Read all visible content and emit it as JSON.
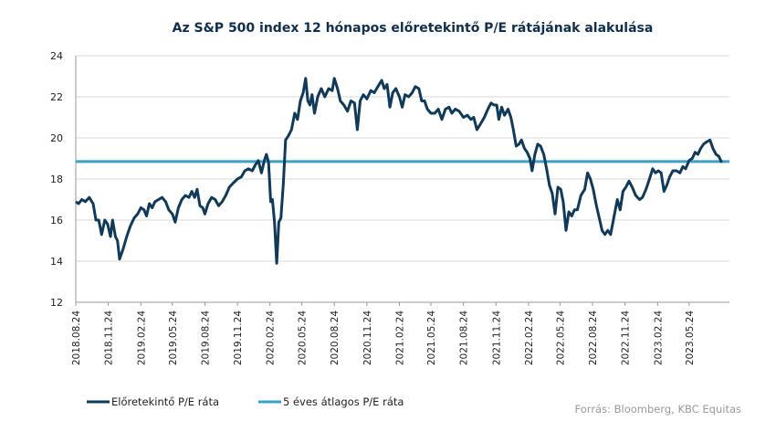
{
  "chart_data": {
    "type": "line",
    "title": "Az S&P 500 index 12 hónapos előretekintő P/E rátájának alakulása",
    "ylim": [
      12,
      24
    ],
    "yticks": [
      "12",
      "14",
      "16",
      "18",
      "20",
      "22",
      "24"
    ],
    "xlim": [
      "2018-08-24",
      "2023-09-15"
    ],
    "xticks": [
      {
        "date": "2018-08-24",
        "label": "2018.08.24"
      },
      {
        "date": "2018-11-24",
        "label": "2018.11.24"
      },
      {
        "date": "2019-02-24",
        "label": "2019.02.24"
      },
      {
        "date": "2019-05-24",
        "label": "2019.05.24"
      },
      {
        "date": "2019-08-24",
        "label": "2019.08.24"
      },
      {
        "date": "2019-11-24",
        "label": "2019.11.24"
      },
      {
        "date": "2020-02-24",
        "label": "2020.02.24"
      },
      {
        "date": "2020-05-24",
        "label": "2020.05.24"
      },
      {
        "date": "2020-08-24",
        "label": "2020.08.24"
      },
      {
        "date": "2020-11-24",
        "label": "2020.11.24"
      },
      {
        "date": "2021-02-24",
        "label": "2021.02.24"
      },
      {
        "date": "2021-05-24",
        "label": "2021.05.24"
      },
      {
        "date": "2021-08-24",
        "label": "2021.08.24"
      },
      {
        "date": "2021-11-24",
        "label": "2021.11.24"
      },
      {
        "date": "2022-02-24",
        "label": "2022.02.24"
      },
      {
        "date": "2022-05-24",
        "label": "2022.05.24"
      },
      {
        "date": "2022-08-24",
        "label": "2022.08.24"
      },
      {
        "date": "2022-11-24",
        "label": "2022.11.24"
      },
      {
        "date": "2023-02-24",
        "label": "2023.02.24"
      },
      {
        "date": "2023-05-24",
        "label": "2023.05.24"
      }
    ],
    "grid": true,
    "legend_position": "bottom-left",
    "series": [
      {
        "name": "Előretekintő P/E ráta",
        "color": "#0f3a5a",
        "points": [
          [
            "2018-08-24",
            16.9
          ],
          [
            "2018-09-01",
            16.8
          ],
          [
            "2018-09-10",
            17.0
          ],
          [
            "2018-09-20",
            16.9
          ],
          [
            "2018-10-01",
            17.1
          ],
          [
            "2018-10-12",
            16.8
          ],
          [
            "2018-10-20",
            16.0
          ],
          [
            "2018-10-28",
            16.0
          ],
          [
            "2018-11-05",
            15.3
          ],
          [
            "2018-11-14",
            16.0
          ],
          [
            "2018-11-22",
            15.8
          ],
          [
            "2018-11-30",
            15.2
          ],
          [
            "2018-12-06",
            16.0
          ],
          [
            "2018-12-14",
            15.2
          ],
          [
            "2018-12-20",
            15.0
          ],
          [
            "2018-12-26",
            14.1
          ],
          [
            "2019-01-05",
            14.6
          ],
          [
            "2019-01-15",
            15.2
          ],
          [
            "2019-01-25",
            15.7
          ],
          [
            "2019-02-05",
            16.1
          ],
          [
            "2019-02-15",
            16.3
          ],
          [
            "2019-02-24",
            16.6
          ],
          [
            "2019-03-05",
            16.5
          ],
          [
            "2019-03-12",
            16.2
          ],
          [
            "2019-03-20",
            16.8
          ],
          [
            "2019-03-28",
            16.6
          ],
          [
            "2019-04-05",
            16.9
          ],
          [
            "2019-04-15",
            17.0
          ],
          [
            "2019-04-25",
            17.1
          ],
          [
            "2019-05-05",
            16.9
          ],
          [
            "2019-05-14",
            16.5
          ],
          [
            "2019-05-24",
            16.3
          ],
          [
            "2019-06-01",
            15.9
          ],
          [
            "2019-06-10",
            16.6
          ],
          [
            "2019-06-20",
            17.0
          ],
          [
            "2019-06-30",
            17.2
          ],
          [
            "2019-07-10",
            17.1
          ],
          [
            "2019-07-18",
            17.4
          ],
          [
            "2019-07-26",
            17.1
          ],
          [
            "2019-08-02",
            17.5
          ],
          [
            "2019-08-10",
            16.7
          ],
          [
            "2019-08-18",
            16.6
          ],
          [
            "2019-08-24",
            16.3
          ],
          [
            "2019-09-02",
            16.8
          ],
          [
            "2019-09-12",
            17.1
          ],
          [
            "2019-09-22",
            17.0
          ],
          [
            "2019-10-02",
            16.7
          ],
          [
            "2019-10-12",
            16.9
          ],
          [
            "2019-10-22",
            17.2
          ],
          [
            "2019-11-01",
            17.6
          ],
          [
            "2019-11-12",
            17.8
          ],
          [
            "2019-11-24",
            18.0
          ],
          [
            "2019-12-05",
            18.1
          ],
          [
            "2019-12-15",
            18.4
          ],
          [
            "2019-12-25",
            18.5
          ],
          [
            "2020-01-05",
            18.4
          ],
          [
            "2020-01-14",
            18.7
          ],
          [
            "2020-01-22",
            18.9
          ],
          [
            "2020-01-31",
            18.3
          ],
          [
            "2020-02-08",
            18.9
          ],
          [
            "2020-02-14",
            19.2
          ],
          [
            "2020-02-20",
            18.8
          ],
          [
            "2020-02-26",
            16.9
          ],
          [
            "2020-03-02",
            17.0
          ],
          [
            "2020-03-08",
            15.9
          ],
          [
            "2020-03-14",
            13.9
          ],
          [
            "2020-03-20",
            15.9
          ],
          [
            "2020-03-26",
            16.1
          ],
          [
            "2020-04-02",
            17.8
          ],
          [
            "2020-04-08",
            19.9
          ],
          [
            "2020-04-16",
            20.1
          ],
          [
            "2020-04-25",
            20.4
          ],
          [
            "2020-05-04",
            21.2
          ],
          [
            "2020-05-12",
            20.9
          ],
          [
            "2020-05-20",
            21.8
          ],
          [
            "2020-05-28",
            22.2
          ],
          [
            "2020-06-04",
            22.9
          ],
          [
            "2020-06-10",
            21.8
          ],
          [
            "2020-06-16",
            21.6
          ],
          [
            "2020-06-22",
            22.1
          ],
          [
            "2020-06-29",
            21.2
          ],
          [
            "2020-07-08",
            22.0
          ],
          [
            "2020-07-18",
            22.4
          ],
          [
            "2020-07-28",
            22.0
          ],
          [
            "2020-08-08",
            22.4
          ],
          [
            "2020-08-18",
            22.3
          ],
          [
            "2020-08-24",
            22.9
          ],
          [
            "2020-09-02",
            22.4
          ],
          [
            "2020-09-10",
            21.8
          ],
          [
            "2020-09-20",
            21.6
          ],
          [
            "2020-09-30",
            21.3
          ],
          [
            "2020-10-10",
            21.8
          ],
          [
            "2020-10-20",
            21.7
          ],
          [
            "2020-10-28",
            20.4
          ],
          [
            "2020-11-05",
            21.8
          ],
          [
            "2020-11-14",
            22.1
          ],
          [
            "2020-11-24",
            21.9
          ],
          [
            "2020-12-05",
            22.3
          ],
          [
            "2020-12-15",
            22.2
          ],
          [
            "2020-12-25",
            22.5
          ],
          [
            "2021-01-05",
            22.8
          ],
          [
            "2021-01-12",
            22.4
          ],
          [
            "2021-01-20",
            22.6
          ],
          [
            "2021-01-28",
            21.5
          ],
          [
            "2021-02-05",
            22.2
          ],
          [
            "2021-02-14",
            22.4
          ],
          [
            "2021-02-24",
            22.0
          ],
          [
            "2021-03-04",
            21.5
          ],
          [
            "2021-03-12",
            22.1
          ],
          [
            "2021-03-22",
            22.0
          ],
          [
            "2021-04-01",
            22.2
          ],
          [
            "2021-04-10",
            22.5
          ],
          [
            "2021-04-20",
            22.4
          ],
          [
            "2021-04-28",
            21.8
          ],
          [
            "2021-05-06",
            21.8
          ],
          [
            "2021-05-14",
            21.4
          ],
          [
            "2021-05-24",
            21.2
          ],
          [
            "2021-06-04",
            21.2
          ],
          [
            "2021-06-14",
            21.4
          ],
          [
            "2021-06-24",
            20.9
          ],
          [
            "2021-07-04",
            21.4
          ],
          [
            "2021-07-14",
            21.5
          ],
          [
            "2021-07-22",
            21.2
          ],
          [
            "2021-08-01",
            21.4
          ],
          [
            "2021-08-12",
            21.3
          ],
          [
            "2021-08-24",
            21.0
          ],
          [
            "2021-09-04",
            21.1
          ],
          [
            "2021-09-14",
            20.9
          ],
          [
            "2021-09-22",
            21.0
          ],
          [
            "2021-10-01",
            20.4
          ],
          [
            "2021-10-12",
            20.7
          ],
          [
            "2021-10-22",
            21.0
          ],
          [
            "2021-11-01",
            21.4
          ],
          [
            "2021-11-10",
            21.7
          ],
          [
            "2021-11-18",
            21.6
          ],
          [
            "2021-11-26",
            21.6
          ],
          [
            "2021-12-02",
            20.9
          ],
          [
            "2021-12-10",
            21.5
          ],
          [
            "2021-12-18",
            21.1
          ],
          [
            "2021-12-28",
            21.4
          ],
          [
            "2022-01-05",
            21.0
          ],
          [
            "2022-01-12",
            20.4
          ],
          [
            "2022-01-20",
            19.6
          ],
          [
            "2022-01-28",
            19.7
          ],
          [
            "2022-02-04",
            19.9
          ],
          [
            "2022-02-12",
            19.5
          ],
          [
            "2022-02-20",
            19.3
          ],
          [
            "2022-02-28",
            19.0
          ],
          [
            "2022-03-06",
            18.4
          ],
          [
            "2022-03-14",
            19.2
          ],
          [
            "2022-03-22",
            19.7
          ],
          [
            "2022-03-30",
            19.6
          ],
          [
            "2022-04-08",
            19.2
          ],
          [
            "2022-04-16",
            18.5
          ],
          [
            "2022-04-24",
            17.7
          ],
          [
            "2022-05-02",
            17.3
          ],
          [
            "2022-05-10",
            16.3
          ],
          [
            "2022-05-18",
            17.6
          ],
          [
            "2022-05-26",
            17.5
          ],
          [
            "2022-06-02",
            16.9
          ],
          [
            "2022-06-10",
            15.5
          ],
          [
            "2022-06-18",
            16.4
          ],
          [
            "2022-06-26",
            16.2
          ],
          [
            "2022-07-04",
            16.5
          ],
          [
            "2022-07-12",
            16.5
          ],
          [
            "2022-07-22",
            17.2
          ],
          [
            "2022-08-02",
            17.5
          ],
          [
            "2022-08-10",
            18.3
          ],
          [
            "2022-08-18",
            18.0
          ],
          [
            "2022-08-26",
            17.5
          ],
          [
            "2022-09-04",
            16.7
          ],
          [
            "2022-09-12",
            16.1
          ],
          [
            "2022-09-20",
            15.5
          ],
          [
            "2022-09-28",
            15.3
          ],
          [
            "2022-10-06",
            15.5
          ],
          [
            "2022-10-14",
            15.3
          ],
          [
            "2022-10-24",
            16.2
          ],
          [
            "2022-11-02",
            17.0
          ],
          [
            "2022-11-10",
            16.5
          ],
          [
            "2022-11-18",
            17.4
          ],
          [
            "2022-11-26",
            17.6
          ],
          [
            "2022-12-05",
            17.9
          ],
          [
            "2022-12-14",
            17.6
          ],
          [
            "2022-12-24",
            17.2
          ],
          [
            "2023-01-04",
            17.0
          ],
          [
            "2023-01-12",
            17.1
          ],
          [
            "2023-01-22",
            17.5
          ],
          [
            "2023-02-01",
            18.0
          ],
          [
            "2023-02-10",
            18.5
          ],
          [
            "2023-02-18",
            18.3
          ],
          [
            "2023-02-26",
            18.4
          ],
          [
            "2023-03-06",
            18.3
          ],
          [
            "2023-03-14",
            17.4
          ],
          [
            "2023-03-22",
            17.7
          ],
          [
            "2023-03-30",
            18.1
          ],
          [
            "2023-04-08",
            18.4
          ],
          [
            "2023-04-18",
            18.4
          ],
          [
            "2023-04-28",
            18.3
          ],
          [
            "2023-05-06",
            18.6
          ],
          [
            "2023-05-14",
            18.5
          ],
          [
            "2023-05-24",
            18.9
          ],
          [
            "2023-06-02",
            19.0
          ],
          [
            "2023-06-10",
            19.3
          ],
          [
            "2023-06-18",
            19.2
          ],
          [
            "2023-06-26",
            19.5
          ],
          [
            "2023-07-04",
            19.7
          ],
          [
            "2023-07-12",
            19.8
          ],
          [
            "2023-07-22",
            19.9
          ],
          [
            "2023-07-30",
            19.5
          ],
          [
            "2023-08-08",
            19.2
          ],
          [
            "2023-08-16",
            19.1
          ],
          [
            "2023-08-24",
            18.8
          ]
        ]
      },
      {
        "name": "5 éves átlagos P/E ráta",
        "color": "#3ba0c8",
        "points": [
          [
            "2018-08-24",
            18.85
          ],
          [
            "2023-08-24",
            18.85
          ]
        ]
      }
    ],
    "source": "Forrás: Bloomberg,  KBC Equitas"
  }
}
